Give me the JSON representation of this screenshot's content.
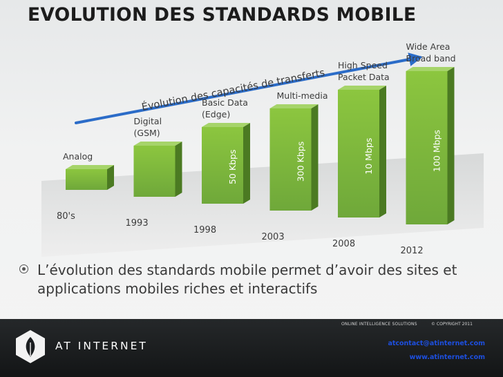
{
  "slide": {
    "title": "EVOLUTION DES STANDARDS MOBILE",
    "bullet": "L’évolution des standards mobile permet d’avoir des sites et applications mobiles riches et interactifs"
  },
  "chart_data": {
    "type": "bar",
    "trend_label": "Évolution des capacités de transferts",
    "categories": [
      {
        "label": [
          "Analog"
        ],
        "year": "80's",
        "speed": ""
      },
      {
        "label": [
          "Digital",
          "(GSM)"
        ],
        "year": "1993",
        "speed": ""
      },
      {
        "label": [
          "Basic Data",
          "(Edge)"
        ],
        "year": "1998",
        "speed": "50 Kbps"
      },
      {
        "label": [
          "Multi-media"
        ],
        "year": "2003",
        "speed": "300 Kbps"
      },
      {
        "label": [
          "High Speed",
          "Packet Data"
        ],
        "year": "2008",
        "speed": "10 Mbps"
      },
      {
        "label": [
          "Wide Area",
          "Broad band"
        ],
        "year": "2012",
        "speed": "100 Mbps"
      }
    ],
    "values": [
      1,
      2,
      3,
      4,
      5,
      6
    ],
    "colors": {
      "bar_front": "#7cb342",
      "bar_side": "#4b7a22",
      "bar_top": "#a6d46a",
      "arrow": "#2b6cc8"
    }
  },
  "footer": {
    "brand": "AT INTERNET",
    "tagline": "ONLINE INTELLIGENCE SOLUTIONS",
    "copyright": "© COPYRIGHT 2011",
    "email": "atcontact@atinternet.com",
    "website": "www.atinternet.com"
  }
}
